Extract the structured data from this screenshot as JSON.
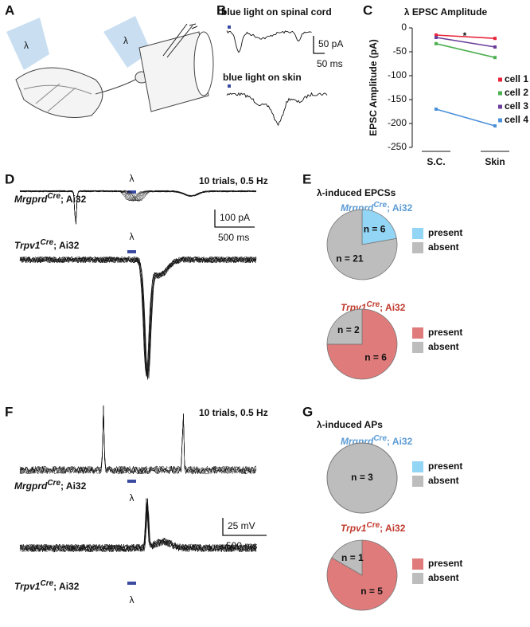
{
  "lambda": "λ",
  "panel_labels": [
    "A",
    "B",
    "C",
    "D",
    "E",
    "F",
    "G"
  ],
  "panel_b": {
    "top": "blue light on spinal cord",
    "bottom": "blue light on skin",
    "scale_y": "50 pA",
    "scale_x": "50 ms"
  },
  "panel_d": {
    "trials": "10 trials, 0.5 Hz",
    "labels": [
      {
        "gene": "Mrgprd",
        "sup": "Cre",
        "rest": "; Ai32"
      },
      {
        "gene": "Trpv1",
        "sup": "Cre",
        "rest": "; Ai32"
      }
    ],
    "scale_y": "100 pA",
    "scale_x": "500 ms"
  },
  "panel_e": {
    "title": "λ-induced EPCSs"
  },
  "panel_f": {
    "trials": "10 trials, 0.5 Hz",
    "labels": [
      {
        "gene": "Mrgprd",
        "sup": "Cre",
        "rest": "; Ai32"
      },
      {
        "gene": "Trpv1",
        "sup": "Cre",
        "rest": "; Ai32"
      }
    ],
    "scale_y": "25 mV",
    "scale_x": "500 ms"
  },
  "panel_g": {
    "title": "λ-induced APs"
  },
  "chart_data": [
    {
      "type": "line",
      "title": "λ EPSC Amplitude",
      "y_label": "EPSC Amplitude (pA)",
      "annotation": "*",
      "categories": [
        "S.C.",
        "Skin"
      ],
      "ylim": [
        -250,
        0
      ],
      "yticks": [
        0,
        -50,
        -100,
        -150,
        -200,
        -250
      ],
      "series": [
        {
          "name": "cell 1",
          "color": "#e8253a",
          "values": [
            -15,
            -22
          ]
        },
        {
          "name": "cell 2",
          "color": "#4caf50",
          "values": [
            -33,
            -62
          ]
        },
        {
          "name": "cell 3",
          "color": "#6a3d9a",
          "values": [
            -20,
            -40
          ]
        },
        {
          "name": "cell 4",
          "color": "#4a90d9",
          "values": [
            -170,
            -205
          ]
        }
      ]
    },
    {
      "type": "pie",
      "subtitle": {
        "gene": "Mrgprd",
        "sup": "Cre",
        "rest": "; Ai32"
      },
      "subtitle_color": "#5b9bd5",
      "categories": [
        "present",
        "absent"
      ],
      "values": [
        6,
        21
      ],
      "value_labels": [
        "n = 6",
        "n = 21"
      ],
      "colors": [
        "#92d5f5",
        "#bdbdbd"
      ]
    },
    {
      "type": "pie",
      "subtitle": {
        "gene": "Trpv1",
        "sup": "Cre",
        "rest": "; Ai32"
      },
      "subtitle_color": "#c0392b",
      "categories": [
        "present",
        "absent"
      ],
      "values": [
        6,
        2
      ],
      "value_labels": [
        "n = 6",
        "n = 2"
      ],
      "colors": [
        "#e07b7b",
        "#bdbdbd"
      ]
    },
    {
      "type": "pie",
      "subtitle": {
        "gene": "Mrgprd",
        "sup": "Cre",
        "rest": "; Ai32"
      },
      "subtitle_color": "#5b9bd5",
      "categories": [
        "present",
        "absent"
      ],
      "values": [
        0,
        3
      ],
      "value_labels": [
        null,
        "n = 3"
      ],
      "colors": [
        "#92d5f5",
        "#bdbdbd"
      ]
    },
    {
      "type": "pie",
      "subtitle": {
        "gene": "Trpv1",
        "sup": "Cre",
        "rest": "; Ai32"
      },
      "subtitle_color": "#c0392b",
      "categories": [
        "present",
        "absent"
      ],
      "values": [
        5,
        1
      ],
      "value_labels": [
        "n = 5",
        "n = 1"
      ],
      "colors": [
        "#e07b7b",
        "#bdbdbd"
      ]
    }
  ]
}
